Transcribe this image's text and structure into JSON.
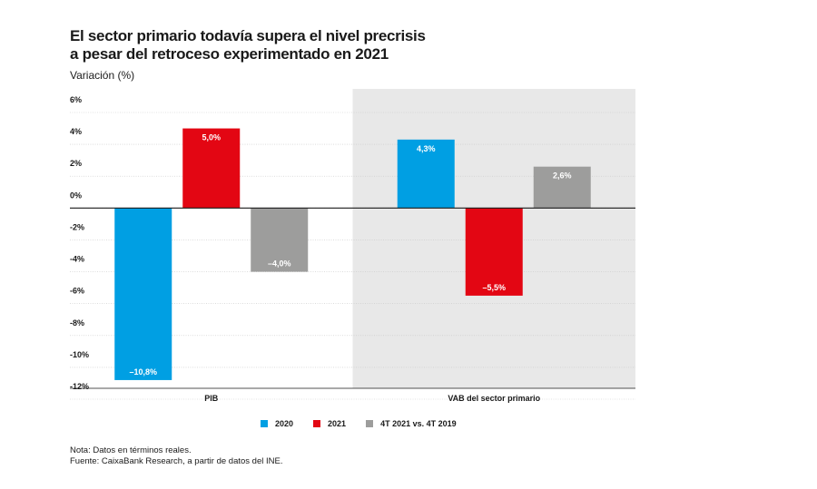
{
  "header": {
    "title_line1": "El sector primario todavía supera el nivel precrisis",
    "title_line2": "a pesar del retroceso experimentado en 2021",
    "subtitle": "Variación (%)"
  },
  "chart_data": {
    "type": "bar",
    "categories": [
      "PIB",
      "VAB del sector primario"
    ],
    "series": [
      {
        "name": "2020",
        "color": "#009fe3",
        "values": [
          -10.8,
          4.3
        ],
        "labels": [
          "–10,8%",
          "4,3%"
        ]
      },
      {
        "name": "2021",
        "color": "#e30613",
        "values": [
          5.0,
          -5.5
        ],
        "labels": [
          "5,0%",
          "–5,5%"
        ]
      },
      {
        "name": "4T 2021 vs. 4T 2019",
        "color": "#9d9d9c",
        "values": [
          -4.0,
          2.6
        ],
        "labels": [
          "–4,0%",
          "2,6%"
        ]
      }
    ],
    "ylim": [
      -12,
      6
    ],
    "yticks": [
      6,
      4,
      2,
      0,
      -2,
      -4,
      -6,
      -8,
      -10,
      -12
    ],
    "ytick_labels": [
      "6%",
      "4%",
      "2%",
      "0%",
      "-2%",
      "-4%",
      "-6%",
      "-8%",
      "-10%",
      "-12%"
    ],
    "grid": true,
    "shaded_category": "VAB del sector primario",
    "shade_color": "#e8e8e8",
    "legend_position": "bottom"
  },
  "notes": {
    "note": "Nota: Datos en términos reales.",
    "source": "Fuente: CaixaBank Research, a partir de datos del INE."
  }
}
